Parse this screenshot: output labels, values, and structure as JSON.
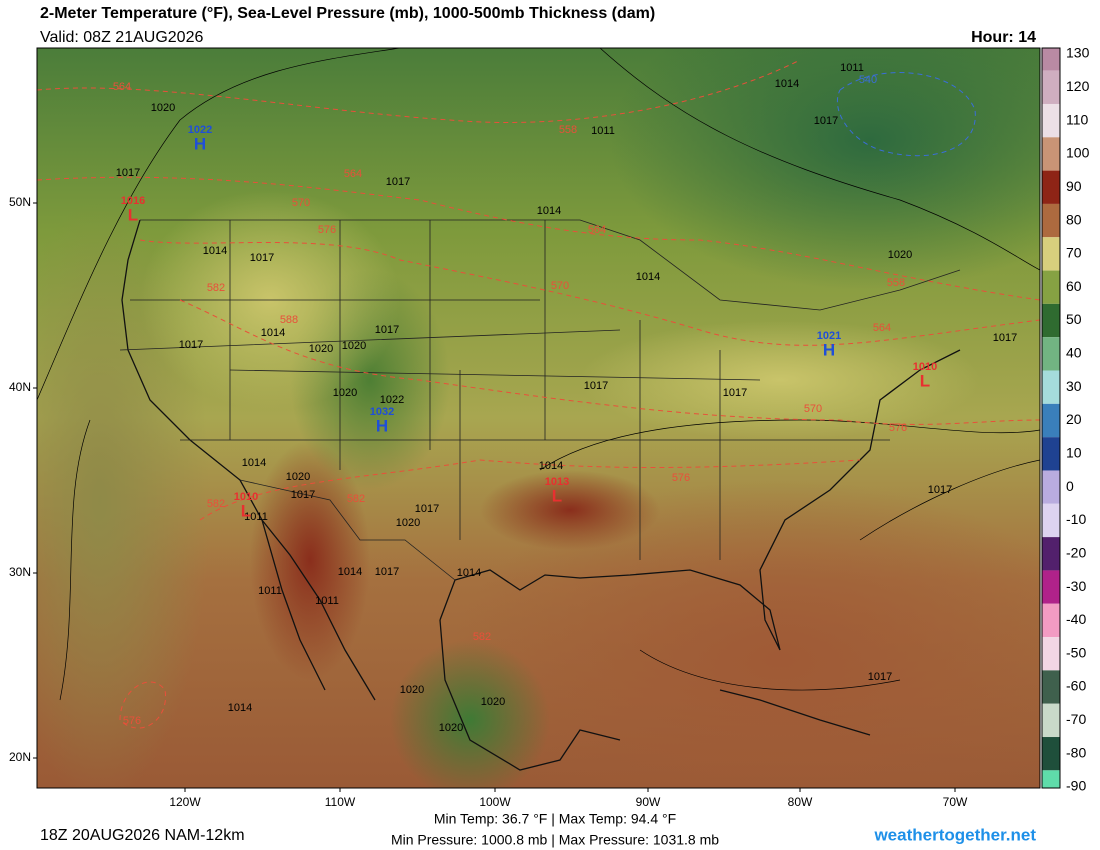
{
  "header": {
    "title": "2-Meter Temperature (°F), Sea-Level Pressure (mb), 1000-500mb Thickness (dam)",
    "valid": "Valid: 08Z 21AUG2026",
    "hour": "Hour: 14"
  },
  "colorbar": {
    "ticks": [
      130,
      120,
      110,
      100,
      90,
      80,
      70,
      60,
      50,
      40,
      30,
      20,
      10,
      0,
      -10,
      -20,
      -30,
      -40,
      -50,
      -60,
      -70,
      -80,
      -90
    ],
    "colors": [
      "#b98aa3",
      "#cfaec0",
      "#ecdfe6",
      "#c99476",
      "#8e2416",
      "#ad6a3f",
      "#d8cf7d",
      "#86a243",
      "#2f6b30",
      "#72b482",
      "#a5dcdc",
      "#3a7fbb",
      "#1f4291",
      "#b9acdf",
      "#ddd3f0",
      "#52206c",
      "#b0228a",
      "#f29bc3",
      "#f2d6e4",
      "#3f604d",
      "#c9d9c9",
      "#1f4f3b",
      "#5fdcaa"
    ]
  },
  "map": {
    "latitudes": [
      "50N",
      "40N",
      "30N",
      "20N"
    ],
    "longitudes": [
      "120W",
      "110W",
      "100W",
      "90W",
      "80W",
      "70W"
    ],
    "pressure_labels": [
      "1020",
      "1017",
      "1017",
      "1014",
      "1011",
      "1014",
      "1017",
      "1014",
      "1017",
      "1020",
      "1020",
      "1017",
      "1014",
      "1020",
      "1022",
      "1017",
      "1017",
      "1014",
      "1020",
      "1017",
      "1020",
      "1017",
      "1014",
      "1014",
      "1017",
      "1014",
      "1017",
      "1017",
      "1014",
      "1020",
      "1020",
      "1020",
      "1017",
      "1011",
      "1014",
      "1017",
      "1020",
      "1011",
      "1011",
      "1011"
    ],
    "thickness_labels": [
      "564",
      "564",
      "570",
      "576",
      "582",
      "588",
      "558",
      "564",
      "570",
      "558",
      "564",
      "570",
      "576",
      "576",
      "582",
      "582",
      "582",
      "576"
    ],
    "cold_thickness_labels": [
      "540"
    ],
    "highs": [
      "1022",
      "1032",
      "1021"
    ],
    "high_letter": "H",
    "lows": [
      "1016",
      "1010",
      "1013",
      "1010"
    ],
    "low_letter": "L"
  },
  "footer": {
    "run": "18Z 20AUG2026 NAM-12km",
    "temps": "Min Temp:  36.7 °F | Max Temp:  94.4 °F",
    "pressures": "Min Pressure: 1000.8 mb | Max Pressure: 1031.8 mb",
    "site": "weathertogether.net"
  }
}
